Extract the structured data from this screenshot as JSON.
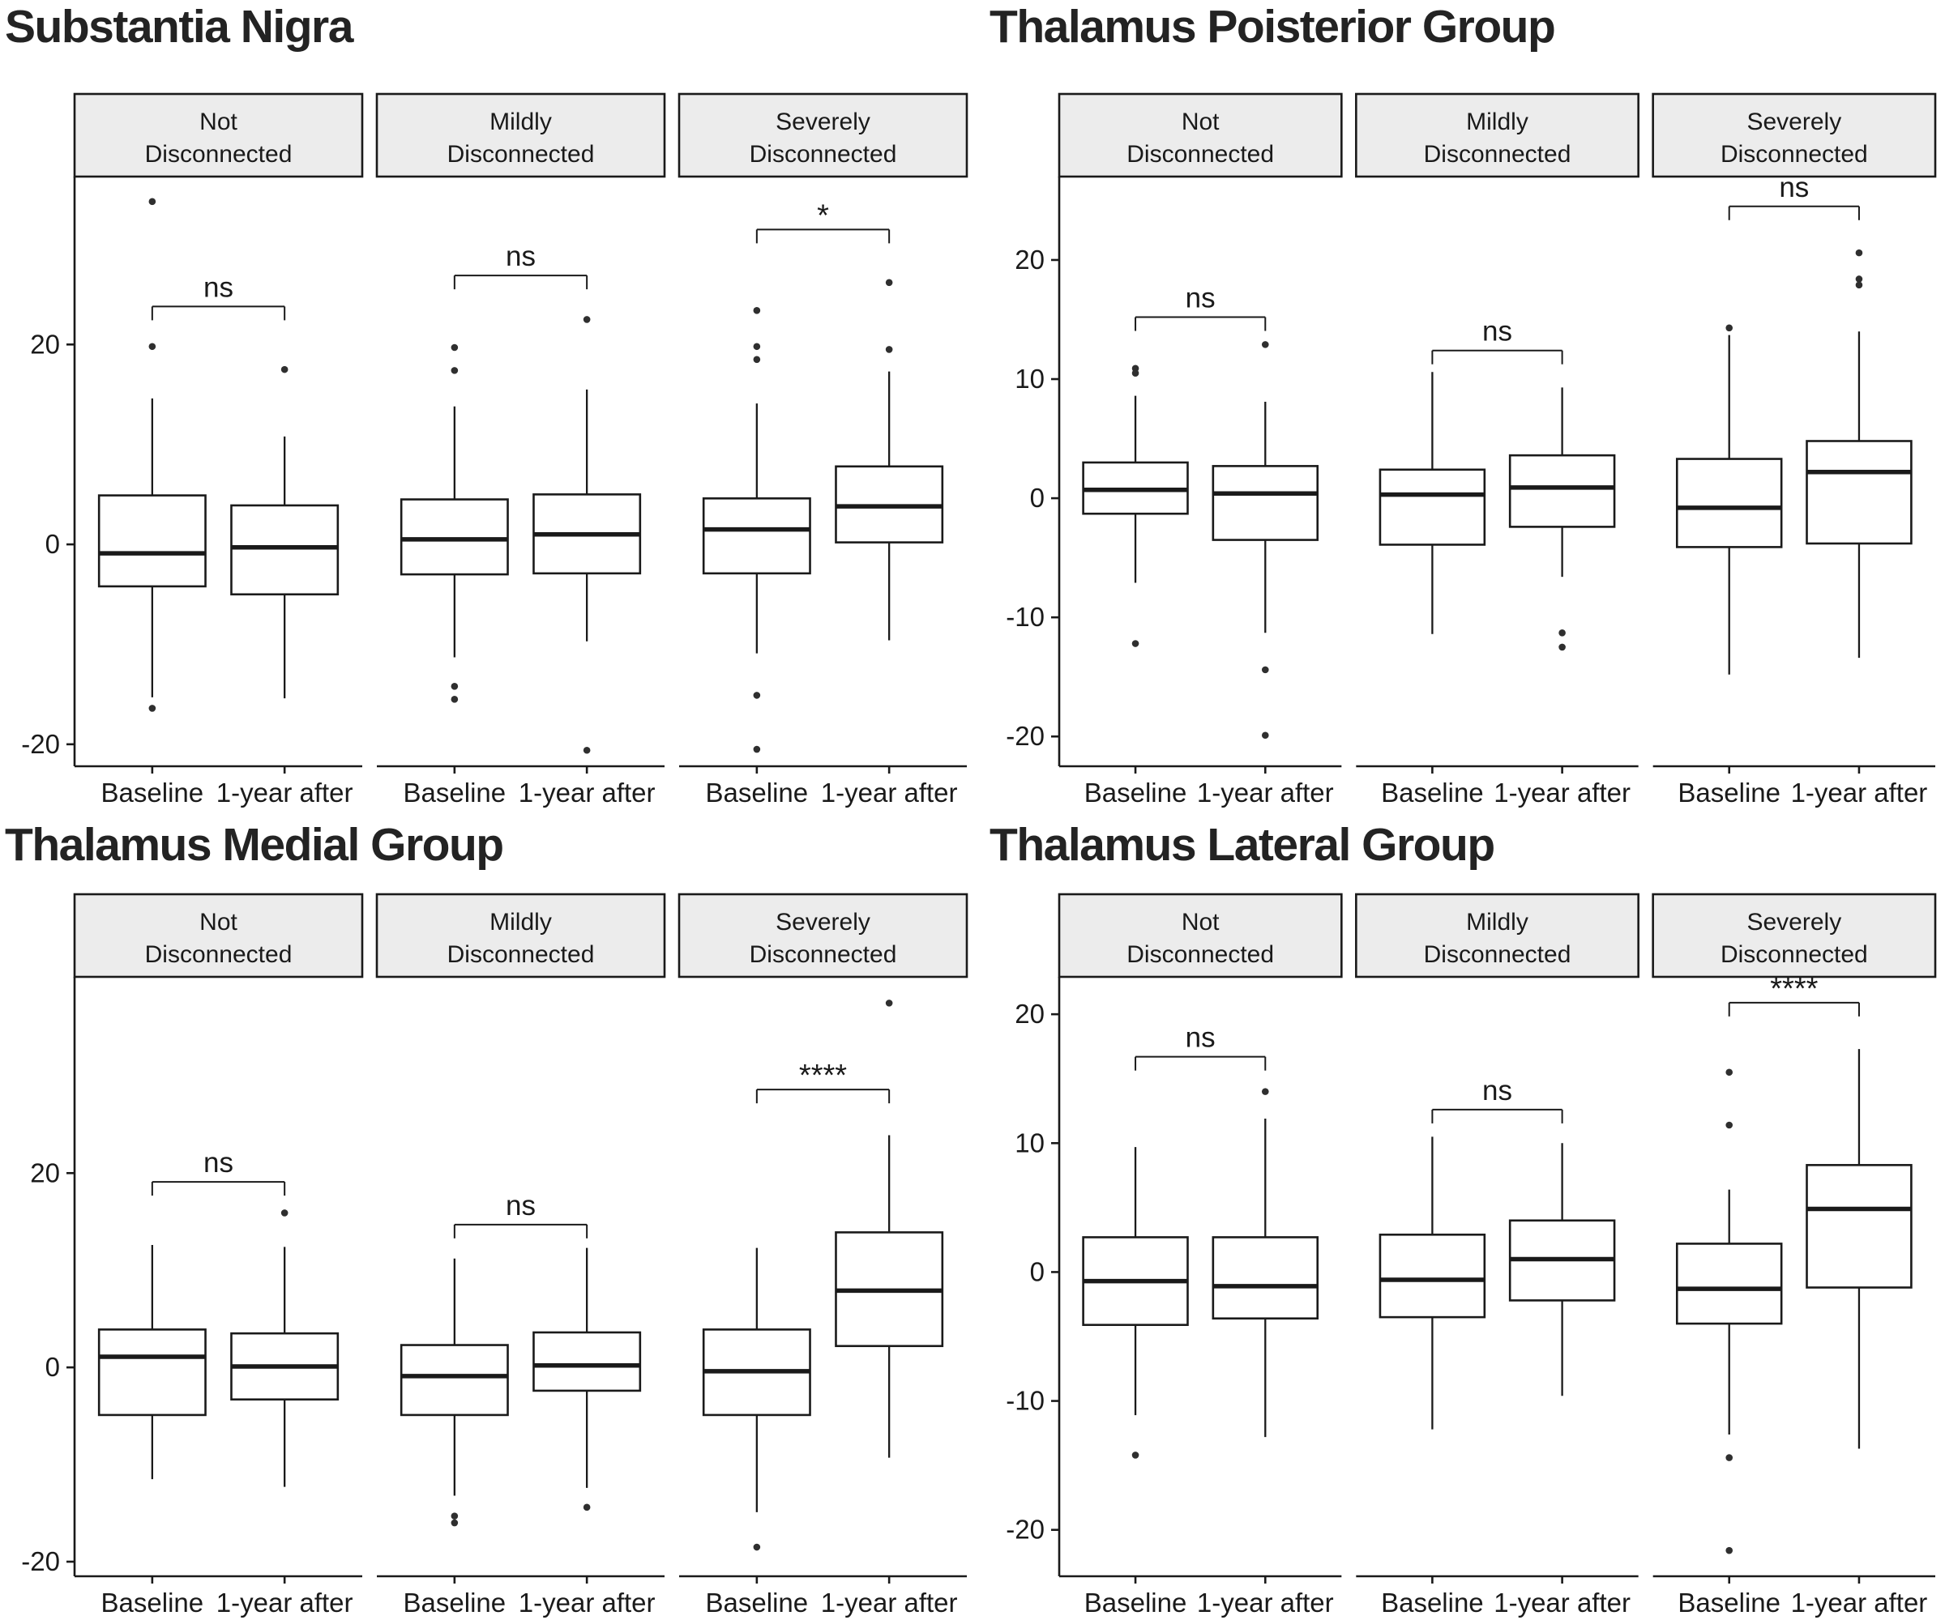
{
  "page": {
    "background": "#ffffff",
    "ink": "#1a1a1a",
    "strip_fill": "#ececec",
    "point_color": "#2f2f2f"
  },
  "x_labels": [
    "Baseline",
    "1-year after"
  ],
  "chart_data": [
    {
      "type": "boxplot",
      "title": "Substantia Nigra",
      "yticks": [
        20,
        0,
        -20
      ],
      "ylim": [
        -22.2,
        36.8
      ],
      "legend_position": "none",
      "grid": false,
      "facets": [
        {
          "label": [
            "Not",
            "Disconnected"
          ],
          "significance": "ns",
          "sig_y": 23.8,
          "series": [
            {
              "name": "Baseline",
              "whisker_low": -15.3,
              "q1": -4.2,
              "median": -0.9,
              "q3": 4.9,
              "whisker_high": 14.6,
              "outliers": [
                34.3,
                19.8,
                -16.4
              ]
            },
            {
              "name": "1-year after",
              "whisker_low": -15.4,
              "q1": -5.0,
              "median": -0.3,
              "q3": 3.9,
              "whisker_high": 10.8,
              "outliers": [
                17.5
              ]
            }
          ]
        },
        {
          "label": [
            "Mildly",
            "Disconnected"
          ],
          "significance": "ns",
          "sig_y": 26.9,
          "series": [
            {
              "name": "Baseline",
              "whisker_low": -11.3,
              "q1": -3.0,
              "median": 0.5,
              "q3": 4.5,
              "whisker_high": 13.8,
              "outliers": [
                19.7,
                17.4,
                -14.2,
                -15.5
              ]
            },
            {
              "name": "1-year after",
              "whisker_low": -9.7,
              "q1": -2.9,
              "median": 1.0,
              "q3": 5.0,
              "whisker_high": 15.5,
              "outliers": [
                22.5,
                -20.6
              ]
            }
          ]
        },
        {
          "label": [
            "Severely",
            "Disconnected"
          ],
          "significance": "*",
          "sig_y": 31.5,
          "series": [
            {
              "name": "Baseline",
              "whisker_low": -10.9,
              "q1": -2.9,
              "median": 1.5,
              "q3": 4.6,
              "whisker_high": 14.1,
              "outliers": [
                23.4,
                19.8,
                18.5,
                -15.1,
                -20.5
              ]
            },
            {
              "name": "1-year after",
              "whisker_low": -9.6,
              "q1": 0.2,
              "median": 3.8,
              "q3": 7.8,
              "whisker_high": 17.3,
              "outliers": [
                26.2,
                19.5
              ]
            }
          ]
        }
      ]
    },
    {
      "type": "boxplot",
      "title": "Thalamus Poisterior Group",
      "yticks": [
        20,
        10,
        0,
        -10,
        -20
      ],
      "ylim": [
        -22.5,
        27.0
      ],
      "legend_position": "none",
      "grid": false,
      "facets": [
        {
          "label": [
            "Not",
            "Disconnected"
          ],
          "significance": "ns",
          "sig_y": 15.2,
          "series": [
            {
              "name": "Baseline",
              "whisker_low": -7.1,
              "q1": -1.3,
              "median": 0.7,
              "q3": 3.0,
              "whisker_high": 8.6,
              "outliers": [
                10.9,
                10.5,
                -12.2
              ]
            },
            {
              "name": "1-year after",
              "whisker_low": -11.3,
              "q1": -3.5,
              "median": 0.4,
              "q3": 2.7,
              "whisker_high": 8.1,
              "outliers": [
                12.9,
                -14.4,
                -19.9
              ]
            }
          ]
        },
        {
          "label": [
            "Mildly",
            "Disconnected"
          ],
          "significance": "ns",
          "sig_y": 12.4,
          "series": [
            {
              "name": "Baseline",
              "whisker_low": -11.4,
              "q1": -3.9,
              "median": 0.3,
              "q3": 2.4,
              "whisker_high": 10.6,
              "outliers": []
            },
            {
              "name": "1-year after",
              "whisker_low": -6.6,
              "q1": -2.4,
              "median": 0.9,
              "q3": 3.6,
              "whisker_high": 9.3,
              "outliers": [
                -11.3,
                -12.5
              ]
            }
          ]
        },
        {
          "label": [
            "Severely",
            "Disconnected"
          ],
          "significance": "ns",
          "sig_y": 24.5,
          "series": [
            {
              "name": "Baseline",
              "whisker_low": -14.8,
              "q1": -4.1,
              "median": -0.8,
              "q3": 3.3,
              "whisker_high": 13.7,
              "outliers": [
                14.3
              ]
            },
            {
              "name": "1-year after",
              "whisker_low": -13.4,
              "q1": -3.8,
              "median": 2.2,
              "q3": 4.8,
              "whisker_high": 14.0,
              "outliers": [
                20.6,
                18.4,
                17.9
              ]
            }
          ]
        }
      ]
    },
    {
      "type": "boxplot",
      "title": "Thalamus Medial Group",
      "yticks": [
        20,
        0,
        -20
      ],
      "ylim": [
        -21.5,
        40.2
      ],
      "legend_position": "none",
      "grid": false,
      "facets": [
        {
          "label": [
            "Not",
            "Disconnected"
          ],
          "significance": "ns",
          "sig_y": 19.1,
          "series": [
            {
              "name": "Baseline",
              "whisker_low": -11.5,
              "q1": -4.9,
              "median": 1.1,
              "q3": 3.9,
              "whisker_high": 12.6,
              "outliers": []
            },
            {
              "name": "1-year after",
              "whisker_low": -12.3,
              "q1": -3.3,
              "median": 0.1,
              "q3": 3.5,
              "whisker_high": 12.4,
              "outliers": [
                15.9
              ]
            }
          ]
        },
        {
          "label": [
            "Mildly",
            "Disconnected"
          ],
          "significance": "ns",
          "sig_y": 14.7,
          "series": [
            {
              "name": "Baseline",
              "whisker_low": -13.2,
              "q1": -4.9,
              "median": -0.9,
              "q3": 2.3,
              "whisker_high": 11.2,
              "outliers": [
                -15.3,
                -16.0
              ]
            },
            {
              "name": "1-year after",
              "whisker_low": -12.4,
              "q1": -2.4,
              "median": 0.2,
              "q3": 3.6,
              "whisker_high": 12.3,
              "outliers": [
                -14.4
              ]
            }
          ]
        },
        {
          "label": [
            "Severely",
            "Disconnected"
          ],
          "significance": "****",
          "sig_y": 28.6,
          "series": [
            {
              "name": "Baseline",
              "whisker_low": -14.9,
              "q1": -4.9,
              "median": -0.4,
              "q3": 3.9,
              "whisker_high": 12.3,
              "outliers": [
                -18.5
              ]
            },
            {
              "name": "1-year after",
              "whisker_low": -9.3,
              "q1": 2.2,
              "median": 7.9,
              "q3": 13.9,
              "whisker_high": 23.9,
              "outliers": [
                37.5
              ]
            }
          ]
        }
      ]
    },
    {
      "type": "boxplot",
      "title": "Thalamus Lateral Group",
      "yticks": [
        20,
        10,
        0,
        -10,
        -20
      ],
      "ylim": [
        -23.6,
        22.9
      ],
      "legend_position": "none",
      "grid": false,
      "facets": [
        {
          "label": [
            "Not",
            "Disconnected"
          ],
          "significance": "ns",
          "sig_y": 16.7,
          "series": [
            {
              "name": "Baseline",
              "whisker_low": -11.1,
              "q1": -4.1,
              "median": -0.7,
              "q3": 2.7,
              "whisker_high": 9.7,
              "outliers": [
                -14.2
              ]
            },
            {
              "name": "1-year after",
              "whisker_low": -12.8,
              "q1": -3.6,
              "median": -1.1,
              "q3": 2.7,
              "whisker_high": 11.9,
              "outliers": [
                14.0
              ]
            }
          ]
        },
        {
          "label": [
            "Mildly",
            "Disconnected"
          ],
          "significance": "ns",
          "sig_y": 12.6,
          "series": [
            {
              "name": "Baseline",
              "whisker_low": -12.2,
              "q1": -3.5,
              "median": -0.6,
              "q3": 2.9,
              "whisker_high": 10.5,
              "outliers": []
            },
            {
              "name": "1-year after",
              "whisker_low": -9.6,
              "q1": -2.2,
              "median": 1.0,
              "q3": 4.0,
              "whisker_high": 10.0,
              "outliers": []
            }
          ]
        },
        {
          "label": [
            "Severely",
            "Disconnected"
          ],
          "significance": "****",
          "sig_y": 20.9,
          "series": [
            {
              "name": "Baseline",
              "whisker_low": -12.6,
              "q1": -4.0,
              "median": -1.3,
              "q3": 2.2,
              "whisker_high": 6.4,
              "outliers": [
                15.5,
                11.4,
                -14.4,
                -21.6
              ]
            },
            {
              "name": "1-year after",
              "whisker_low": -13.7,
              "q1": -1.2,
              "median": 4.9,
              "q3": 8.3,
              "whisker_high": 17.3,
              "outliers": []
            }
          ]
        }
      ]
    }
  ]
}
